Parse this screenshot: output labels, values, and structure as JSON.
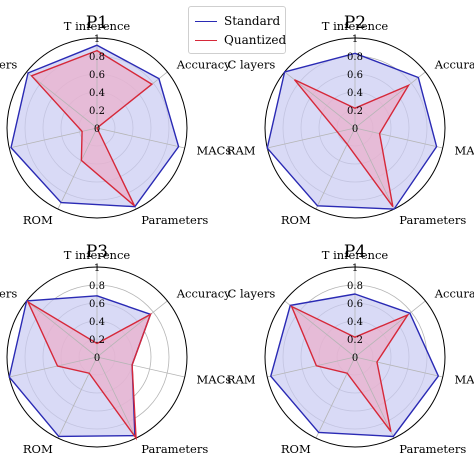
{
  "chart_data": {
    "type": "radar",
    "axes": [
      "T inference",
      "Accuracy",
      "MACs",
      "Parameters",
      "ROM",
      "RAM",
      "C layers"
    ],
    "rtick_labels": [
      "0",
      "0.2",
      "0.4",
      "0.6",
      "0.8",
      "1"
    ],
    "rlim": [
      0,
      1
    ],
    "grid": true,
    "legend": {
      "placement": "top-center",
      "entries": [
        {
          "name": "Standard",
          "color": "#2a2ab4"
        },
        {
          "name": "Quantized",
          "color": "#d62839"
        }
      ]
    },
    "series_colors": {
      "Standard": "#2a2ab4",
      "Quantized": "#d62839"
    },
    "fill_colors": {
      "Standard": "#c9cbf2",
      "Quantized": "#e9b0cc"
    },
    "panels": [
      {
        "title": "P1",
        "series": [
          {
            "name": "Standard",
            "values": [
              0.92,
              0.88,
              0.93,
              0.97,
              0.92,
              0.98,
              0.98
            ]
          },
          {
            "name": "Quantized",
            "values": [
              0.86,
              0.78,
              0.0,
              0.96,
              0.4,
              0.17,
              0.93
            ]
          }
        ]
      },
      {
        "title": "P2",
        "series": [
          {
            "name": "Standard",
            "values": [
              0.83,
              0.9,
              0.93,
              1.0,
              0.96,
              1.0,
              1.0
            ]
          },
          {
            "name": "Quantized",
            "values": [
              0.22,
              0.76,
              0.28,
              0.97,
              0.2,
              0.2,
              0.86
            ]
          }
        ]
      },
      {
        "title": "P3",
        "series": [
          {
            "name": "Standard",
            "values": [
              0.68,
              0.76,
              0.4,
              0.97,
              0.98,
              1.0,
              1.0
            ]
          },
          {
            "name": "Quantized",
            "values": [
              0.15,
              0.76,
              0.4,
              1.0,
              0.2,
              0.45,
              0.98
            ]
          }
        ]
      },
      {
        "title": "P4",
        "series": [
          {
            "name": "Standard",
            "values": [
              0.7,
              0.78,
              0.95,
              0.98,
              0.93,
              0.96,
              0.92
            ]
          },
          {
            "name": "Quantized",
            "values": [
              0.22,
              0.75,
              0.25,
              0.92,
              0.2,
              0.44,
              0.9
            ]
          }
        ]
      }
    ]
  }
}
